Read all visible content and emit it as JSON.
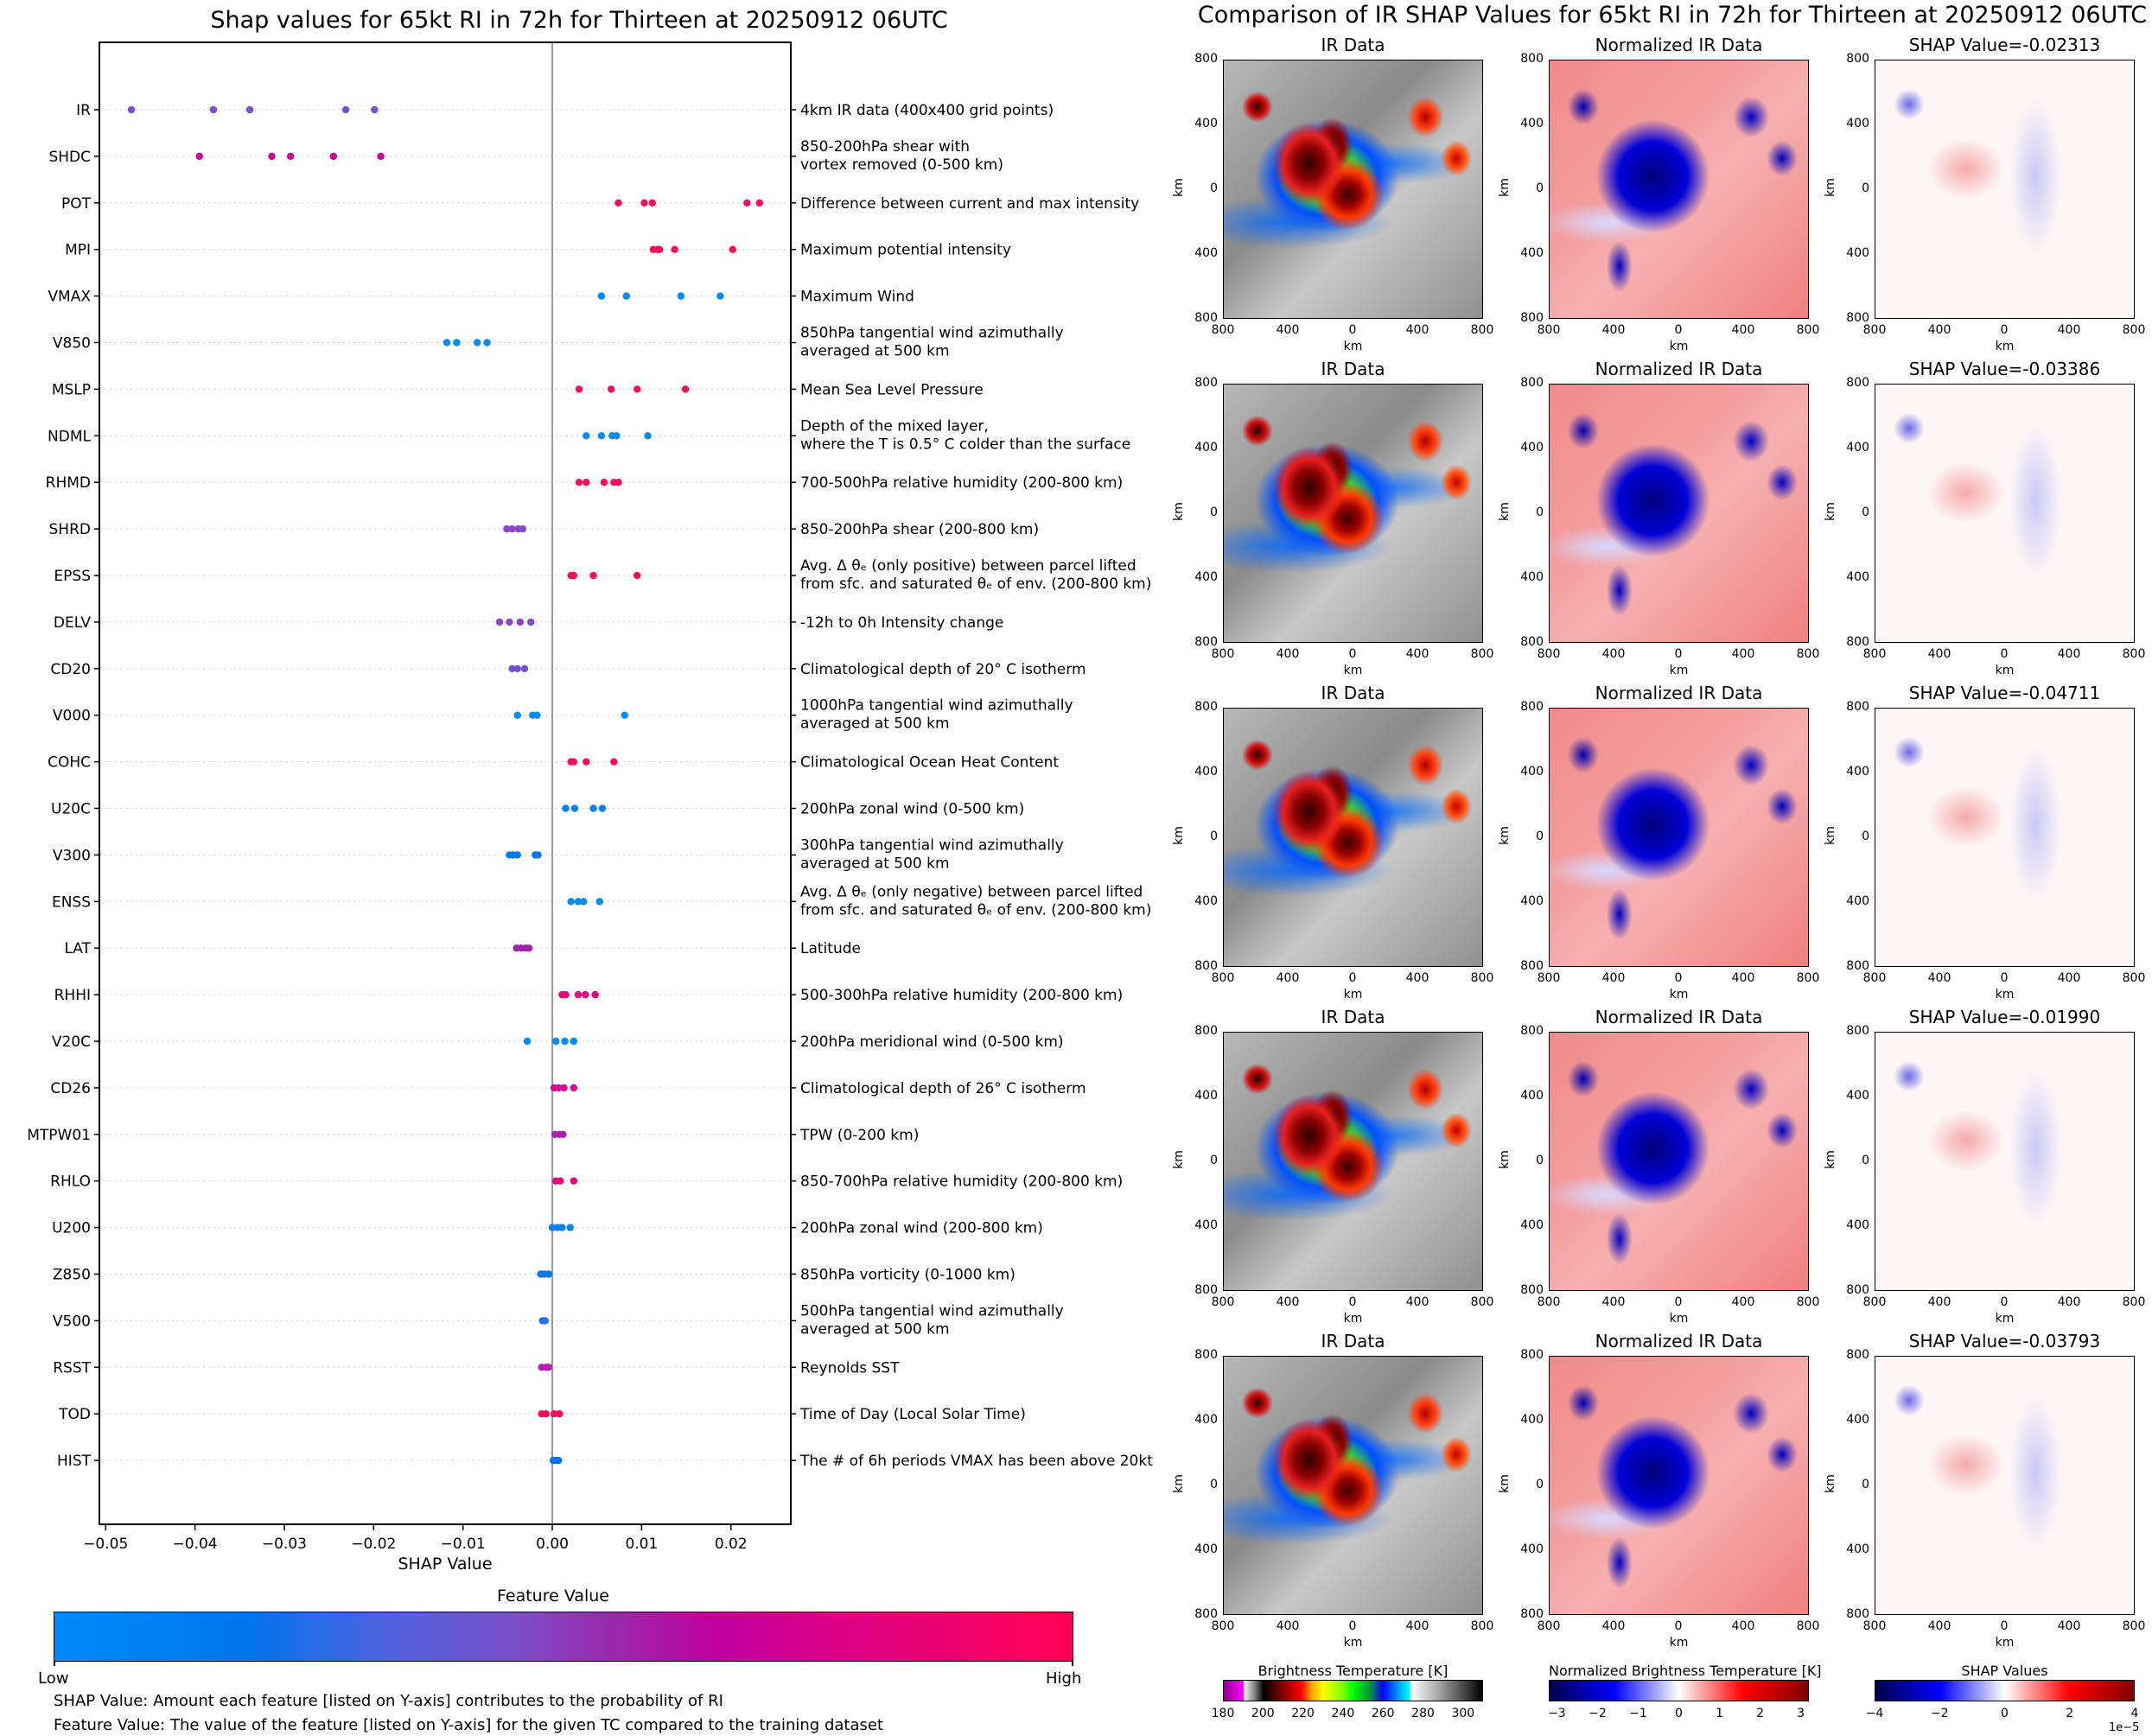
{
  "left": {
    "title": "Shap values for 65kt RI in 72h for Thirteen at 20250912 06UTC",
    "feature_value_title": "Feature Value",
    "feature_low": "Low",
    "feature_high": "High",
    "note_shap": "SHAP Value: Amount each feature [listed on Y-axis] contributes to the probability of RI",
    "note_feature": "Feature Value: The value of the feature [listed on Y-axis] for the given TC compared to the training dataset"
  },
  "right": {
    "title": "Comparison of IR SHAP Values for 65kt RI in 72h for Thirteen at 20250912 06UTC",
    "col_titles": [
      "IR Data",
      "Normalized IR Data"
    ],
    "shap_titles": [
      "SHAP Value=-0.02313",
      "SHAP Value=-0.03386",
      "SHAP Value=-0.04711",
      "SHAP Value=-0.01990",
      "SHAP Value=-0.03793"
    ],
    "axis_unit": "km",
    "axis_ticks": [
      "800",
      "400",
      "0",
      "400",
      "800"
    ],
    "colorbars": [
      {
        "title": "Brightness Temperature [K]",
        "ticks": [
          "180",
          "200",
          "220",
          "240",
          "260",
          "280",
          "300"
        ]
      },
      {
        "title": "Normalized Brightness Temperature [K]",
        "ticks": [
          "−3",
          "−2",
          "−1",
          "0",
          "1",
          "2",
          "3"
        ]
      },
      {
        "title": "SHAP Values",
        "ticks": [
          "−4",
          "−2",
          "0",
          "2",
          "4"
        ],
        "offset": "1e−5"
      }
    ]
  },
  "chart_data": {
    "type": "scatter",
    "title": "Shap values for 65kt RI in 72h for Thirteen at 20250912 06UTC",
    "xlabel": "SHAP Value",
    "ylabel": "",
    "xlim": [
      -0.0507,
      0.0267
    ],
    "xticks": [
      "−0.05",
      "−0.04",
      "−0.03",
      "−0.02",
      "−0.01",
      "0.00",
      "0.01",
      "0.02"
    ],
    "xtick_values": [
      -0.05,
      -0.04,
      -0.03,
      -0.02,
      -0.01,
      0.0,
      0.01,
      0.02
    ],
    "grid": "horizontal dotted",
    "colorbar": {
      "label": "Feature Value",
      "low": "Low",
      "high": "High",
      "placement": "bottom"
    },
    "features": [
      {
        "name": "IR",
        "desc": [
          "4km IR data (400x400 grid points)"
        ],
        "color": "#7b4fd0",
        "values": [
          -0.04711,
          -0.03793,
          -0.03386,
          -0.02313,
          -0.0199
        ]
      },
      {
        "name": "SHDC",
        "desc": [
          "850-200hPa shear with",
          "vortex removed (0-500 km)"
        ],
        "color": "#cc0099",
        "values": [
          -0.0395,
          -0.0314,
          -0.0293,
          -0.0245,
          -0.0192
        ]
      },
      {
        "name": "POT",
        "desc": [
          "Difference between current and max intensity"
        ],
        "color": "#ff0a56",
        "values": [
          0.0074,
          0.0103,
          0.0112,
          0.0218,
          0.0232
        ]
      },
      {
        "name": "MPI",
        "desc": [
          "Maximum potential intensity"
        ],
        "color": "#ff0a56",
        "values": [
          0.0113,
          0.0118,
          0.012,
          0.0137,
          0.0202
        ]
      },
      {
        "name": "VMAX",
        "desc": [
          "Maximum Wind"
        ],
        "color": "#008bfa",
        "values": [
          0.0055,
          0.0083,
          0.0144,
          0.0188
        ]
      },
      {
        "name": "V850",
        "desc": [
          "850hPa tangential wind azimuthally",
          "averaged at 500 km"
        ],
        "color": "#008bfa",
        "values": [
          -0.0118,
          -0.0107,
          -0.0084,
          -0.0073
        ]
      },
      {
        "name": "MSLP",
        "desc": [
          "Mean Sea Level Pressure"
        ],
        "color": "#ff0a56",
        "values": [
          0.003,
          0.0066,
          0.0095,
          0.0149
        ]
      },
      {
        "name": "NDML",
        "desc": [
          "Depth of the mixed layer,",
          "where the T is 0.5° C colder than the surface"
        ],
        "color": "#008bfa",
        "values": [
          0.0038,
          0.0055,
          0.0067,
          0.0072,
          0.0107
        ]
      },
      {
        "name": "RHMD",
        "desc": [
          "700-500hPa relative humidity (200-800 km)"
        ],
        "color": "#ff0a56",
        "values": [
          0.003,
          0.0038,
          0.0058,
          0.0069,
          0.0074
        ]
      },
      {
        "name": "SHRD",
        "desc": [
          "850-200hPa shear (200-800 km)"
        ],
        "color": "#8a45c8",
        "values": [
          -0.0051,
          -0.0045,
          -0.0038,
          -0.0033
        ]
      },
      {
        "name": "EPSS",
        "desc": [
          "Avg. Δ θₑ (only positive) between parcel lifted",
          "from sfc. and saturated θₑ of env. (200-800 km)"
        ],
        "color": "#ff0a56",
        "values": [
          0.0021,
          0.0024,
          0.0046,
          0.0095
        ]
      },
      {
        "name": "DELV",
        "desc": [
          "-12h to 0h Intensity change"
        ],
        "color": "#8a45c8",
        "values": [
          -0.0059,
          -0.0048,
          -0.0036,
          -0.0024
        ]
      },
      {
        "name": "CD20",
        "desc": [
          "Climatological depth of 20° C isotherm"
        ],
        "color": "#7350d0",
        "values": [
          -0.0045,
          -0.0039,
          -0.0031
        ]
      },
      {
        "name": "V000",
        "desc": [
          "1000hPa tangential wind azimuthally",
          "averaged at 500 km"
        ],
        "color": "#008bfa",
        "values": [
          -0.0039,
          -0.0022,
          -0.0017,
          0.0081
        ]
      },
      {
        "name": "COHC",
        "desc": [
          "Climatological Ocean Heat Content"
        ],
        "color": "#ff0a56",
        "values": [
          0.0021,
          0.0024,
          0.0038,
          0.0069
        ]
      },
      {
        "name": "U20C",
        "desc": [
          "200hPa zonal wind (0-500 km)"
        ],
        "color": "#0880f0",
        "values": [
          0.0015,
          0.0025,
          0.0046,
          0.0056
        ]
      },
      {
        "name": "V300",
        "desc": [
          "300hPa tangential wind azimuthally",
          "averaged at 500 km"
        ],
        "color": "#0078ee",
        "values": [
          -0.0048,
          -0.0044,
          -0.0039,
          -0.0019,
          -0.0016
        ]
      },
      {
        "name": "ENSS",
        "desc": [
          "Avg. Δ θₑ (only negative) between parcel lifted",
          "from sfc. and saturated θₑ of env. (200-800 km)"
        ],
        "color": "#008bfa",
        "values": [
          0.0021,
          0.0029,
          0.0035,
          0.0053
        ]
      },
      {
        "name": "LAT",
        "desc": [
          "Latitude"
        ],
        "color": "#a020b0",
        "values": [
          -0.004,
          -0.0035,
          -0.003,
          -0.0026
        ]
      },
      {
        "name": "RHHI",
        "desc": [
          "500-300hPa relative humidity (200-800 km)"
        ],
        "color": "#e8007a",
        "values": [
          0.0011,
          0.0015,
          0.0029,
          0.0037,
          0.0048
        ]
      },
      {
        "name": "V20C",
        "desc": [
          "200hPa meridional wind (0-500 km)"
        ],
        "color": "#008bfa",
        "values": [
          -0.0028,
          0.0004,
          0.0014,
          0.0024
        ]
      },
      {
        "name": "CD26",
        "desc": [
          "Climatological depth of 26° C isotherm"
        ],
        "color": "#d80090",
        "values": [
          0.0002,
          0.0007,
          0.0013,
          0.0024
        ]
      },
      {
        "name": "MTPW01",
        "desc": [
          "TPW (0-200 km)"
        ],
        "color": "#b020b0",
        "values": [
          0.0003,
          0.0008,
          0.0012
        ]
      },
      {
        "name": "RHLO",
        "desc": [
          "850-700hPa relative humidity (200-800 km)"
        ],
        "color": "#e8007a",
        "values": [
          0.0004,
          0.0009,
          0.0024
        ]
      },
      {
        "name": "U200",
        "desc": [
          "200hPa zonal wind (200-800 km)"
        ],
        "color": "#0880f0",
        "values": [
          0.0,
          0.0006,
          0.0011,
          0.002
        ]
      },
      {
        "name": "Z850",
        "desc": [
          "850hPa vorticity (0-1000 km)"
        ],
        "color": "#0878f0",
        "values": [
          -0.0013,
          -0.0009,
          -0.0004
        ]
      },
      {
        "name": "V500",
        "desc": [
          "500hPa tangential wind azimuthally",
          "averaged at 500 km"
        ],
        "color": "#2a6ae8",
        "values": [
          -0.0011,
          -0.0008
        ]
      },
      {
        "name": "RSST",
        "desc": [
          "Reynolds SST"
        ],
        "color": "#b81cb0",
        "values": [
          -0.0012,
          -0.0007,
          -0.0004
        ]
      },
      {
        "name": "TOD",
        "desc": [
          "Time of Day (Local Solar Time)"
        ],
        "color": "#ff0a56",
        "values": [
          -0.0012,
          -0.0007,
          0.0002,
          0.0008
        ]
      },
      {
        "name": "HIST",
        "desc": [
          "The # of 6h periods VMAX has been above 20kt"
        ],
        "color": "#0870ee",
        "values": [
          0.0001,
          0.0004,
          0.0007
        ]
      }
    ]
  }
}
